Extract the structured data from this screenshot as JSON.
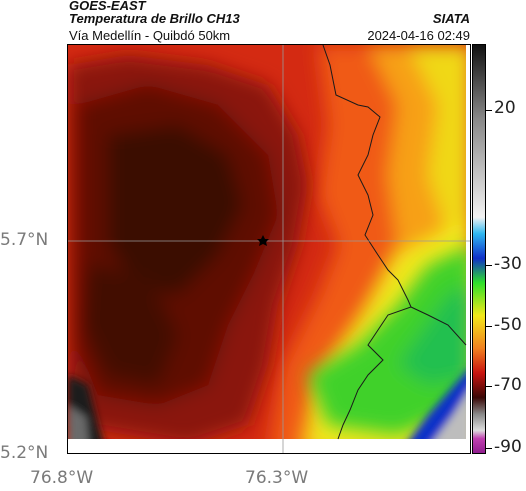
{
  "header": {
    "satellite": "GOES-EAST",
    "product": "Temperatura de Brillo CH13",
    "region": "Vía Medellín - Quibdó 50km",
    "organization": "SIATA",
    "timestamp": "2024-04-16 02:49"
  },
  "axes": {
    "lat_labels": [
      "5.7°N",
      "5.2°N"
    ],
    "lon_labels": [
      "76.8°W",
      "76.3°W"
    ]
  },
  "colorbar": {
    "tick_labels": [
      "20",
      "-30",
      "-50",
      "-70",
      "-90"
    ]
  },
  "map": {
    "marker": "star-marker",
    "gridlines": true
  },
  "colors": {
    "cold_dark": "#3a0806",
    "red": "#e02010",
    "warm_yellow": "#f2e81a",
    "green": "#2ee02a",
    "blue": "#1030c8",
    "gray": "#bdbdbd"
  }
}
